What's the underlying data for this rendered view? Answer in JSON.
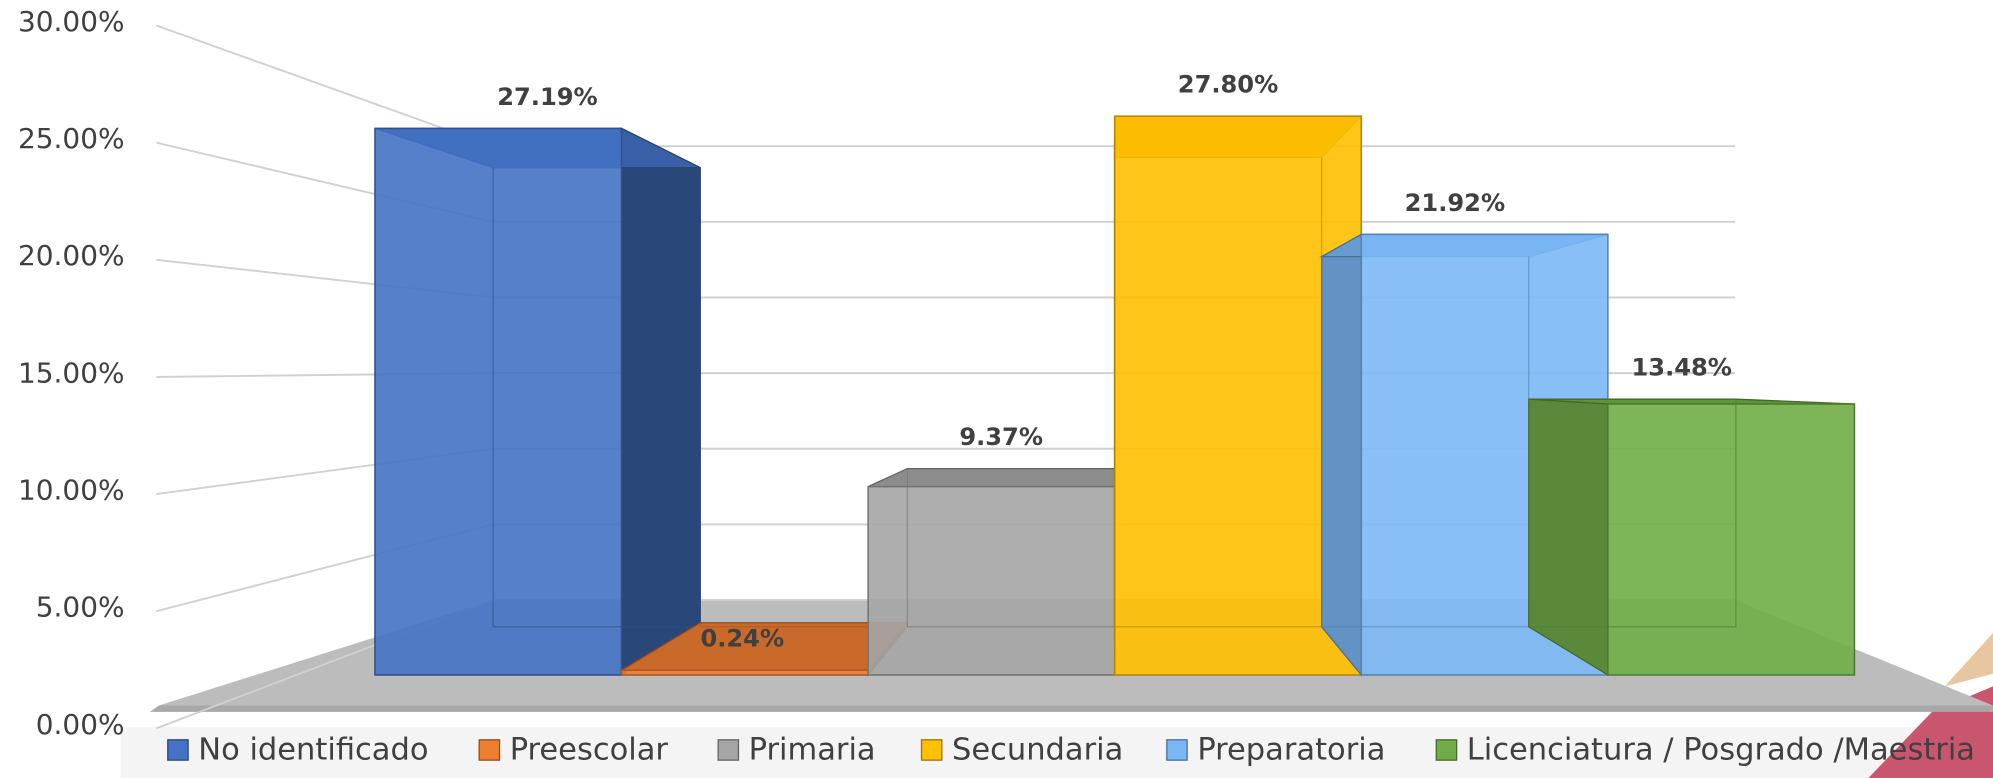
{
  "chart_data": {
    "type": "bar",
    "categories": [
      "No identificado",
      "Preescolar",
      "Primaria",
      "Secundaria",
      "Preparatoria",
      "Licenciatura / Posgrado /Maestria"
    ],
    "values": [
      27.19,
      0.24,
      9.37,
      27.8,
      21.92,
      13.48
    ],
    "value_labels": [
      "27.19%",
      "0.24%",
      "9.37%",
      "27.80%",
      "21.92%",
      "13.48%"
    ],
    "colors": [
      "#4472c4",
      "#ed7d31",
      "#a5a5a5",
      "#ffc000",
      "#7ab8f5",
      "#70ad47"
    ],
    "ylim": [
      0,
      30
    ],
    "yticks": [
      {
        "value": 0,
        "label": "0.00%"
      },
      {
        "value": 5,
        "label": "5.00%"
      },
      {
        "value": 10,
        "label": "10.00%"
      },
      {
        "value": 15,
        "label": "15.00%"
      },
      {
        "value": 20,
        "label": "20.00%"
      },
      {
        "value": 25,
        "label": "25.00%"
      },
      {
        "value": 30,
        "label": "30.00%"
      }
    ],
    "grid": true,
    "legend": "bottom"
  }
}
